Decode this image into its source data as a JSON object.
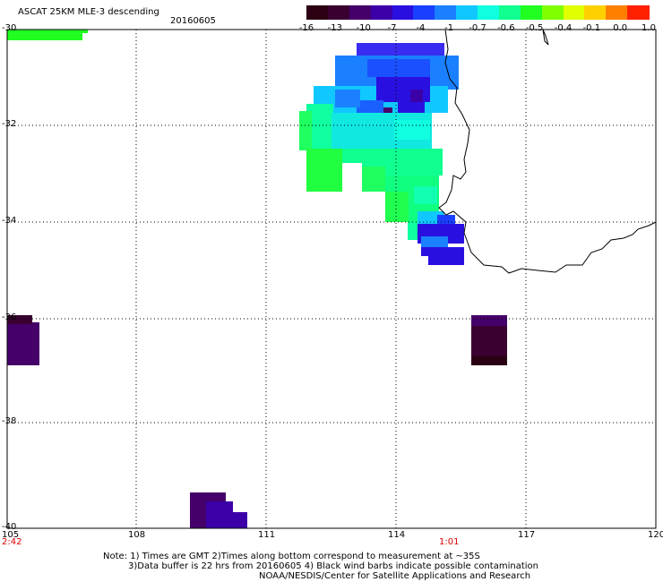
{
  "header": {
    "title": "ASCAT 25KM MLE-3 descending",
    "date": "20160605"
  },
  "colorbar": {
    "labels": [
      "-16",
      "-13",
      "-10",
      "-7",
      "-4",
      "-1",
      "-0.7",
      "-0.6",
      "-0.5",
      "-0.4",
      "-0.1",
      "0.0",
      "1.0"
    ],
    "colors": [
      "#2a0012",
      "#3a0030",
      "#45006a",
      "#3c00a8",
      "#2a10e0",
      "#1a40ff",
      "#1a80ff",
      "#10c8ff",
      "#10ffe0",
      "#10ff90",
      "#20ff20",
      "#80ff00",
      "#e0ff00",
      "#ffd000",
      "#ff8000",
      "#ff2000"
    ]
  },
  "map": {
    "lon_ticks": [
      "105",
      "108",
      "111",
      "114",
      "117",
      "120"
    ],
    "lat_ticks": [
      "-30",
      "-32",
      "-34",
      "-36",
      "-38",
      "-40"
    ],
    "lon_range": [
      105,
      120
    ],
    "lat_range": [
      -30,
      -40
    ],
    "grid": "dotted"
  },
  "time_labels": {
    "left": "2:42",
    "mid": "1:01"
  },
  "footer": {
    "note1": "Note: 1) Times are GMT 2)Times along bottom correspond to measurement at ~35S",
    "note2": "3)Data buffer is 22 hrs from 20160605 4) Black wind barbs indicate possible contamination",
    "credit": "NOAA/NESDIS/Center for Satellite Applications and Research"
  }
}
